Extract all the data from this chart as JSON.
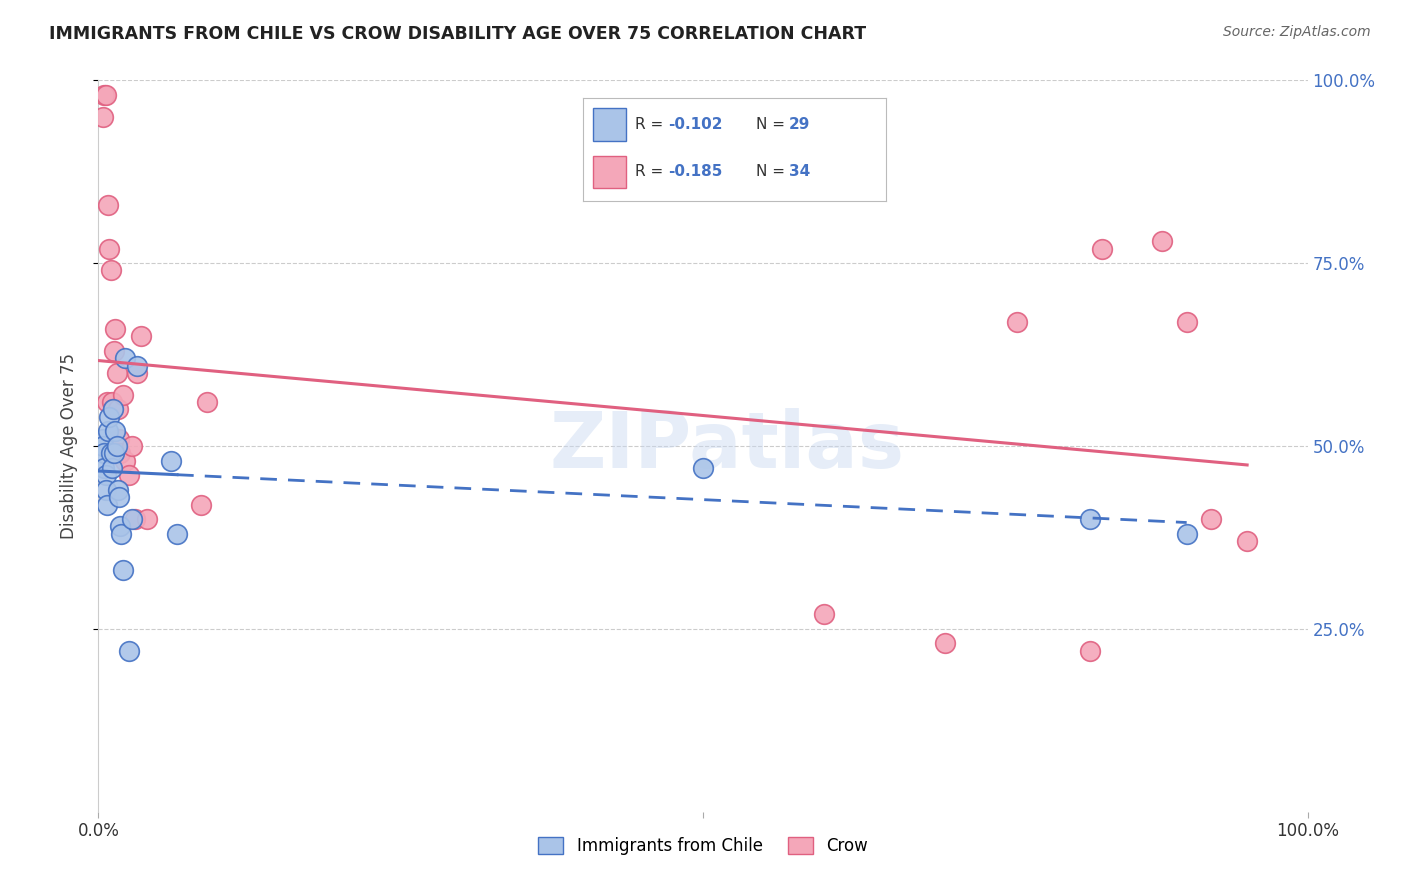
{
  "title": "IMMIGRANTS FROM CHILE VS CROW DISABILITY AGE OVER 75 CORRELATION CHART",
  "source": "Source: ZipAtlas.com",
  "ylabel": "Disability Age Over 75",
  "xlim": [
    0,
    1.0
  ],
  "ylim": [
    0,
    1.0
  ],
  "ytick_positions": [
    0.25,
    0.5,
    0.75,
    1.0
  ],
  "ytick_labels": [
    "25.0%",
    "50.0%",
    "75.0%",
    "100.0%"
  ],
  "watermark": "ZIPatlas",
  "blue_r": "-0.102",
  "blue_n": "29",
  "pink_r": "-0.185",
  "pink_n": "34",
  "blue_color": "#aac4e8",
  "pink_color": "#f4a7b9",
  "blue_line_color": "#4472c4",
  "pink_line_color": "#e06080",
  "blue_x": [
    0.004,
    0.004,
    0.005,
    0.005,
    0.006,
    0.006,
    0.007,
    0.008,
    0.009,
    0.01,
    0.011,
    0.012,
    0.013,
    0.014,
    0.015,
    0.016,
    0.017,
    0.018,
    0.019,
    0.02,
    0.022,
    0.025,
    0.028,
    0.032,
    0.06,
    0.065,
    0.5,
    0.82,
    0.9
  ],
  "blue_y": [
    0.51,
    0.5,
    0.49,
    0.47,
    0.46,
    0.44,
    0.42,
    0.52,
    0.54,
    0.49,
    0.47,
    0.55,
    0.49,
    0.52,
    0.5,
    0.44,
    0.43,
    0.39,
    0.38,
    0.33,
    0.62,
    0.22,
    0.4,
    0.61,
    0.48,
    0.38,
    0.47,
    0.4,
    0.38
  ],
  "pink_x": [
    0.004,
    0.005,
    0.006,
    0.007,
    0.008,
    0.009,
    0.01,
    0.011,
    0.012,
    0.013,
    0.014,
    0.015,
    0.016,
    0.017,
    0.018,
    0.02,
    0.022,
    0.025,
    0.028,
    0.03,
    0.032,
    0.035,
    0.04,
    0.085,
    0.09,
    0.6,
    0.7,
    0.76,
    0.82,
    0.83,
    0.88,
    0.9,
    0.92,
    0.95
  ],
  "pink_y": [
    0.95,
    0.98,
    0.98,
    0.56,
    0.83,
    0.77,
    0.74,
    0.56,
    0.55,
    0.63,
    0.66,
    0.6,
    0.55,
    0.51,
    0.49,
    0.57,
    0.48,
    0.46,
    0.5,
    0.4,
    0.6,
    0.65,
    0.4,
    0.42,
    0.56,
    0.27,
    0.23,
    0.67,
    0.22,
    0.77,
    0.78,
    0.67,
    0.4,
    0.37
  ],
  "legend_label_blue": "Immigrants from Chile",
  "legend_label_pink": "Crow",
  "background_color": "#ffffff",
  "grid_color": "#cccccc"
}
